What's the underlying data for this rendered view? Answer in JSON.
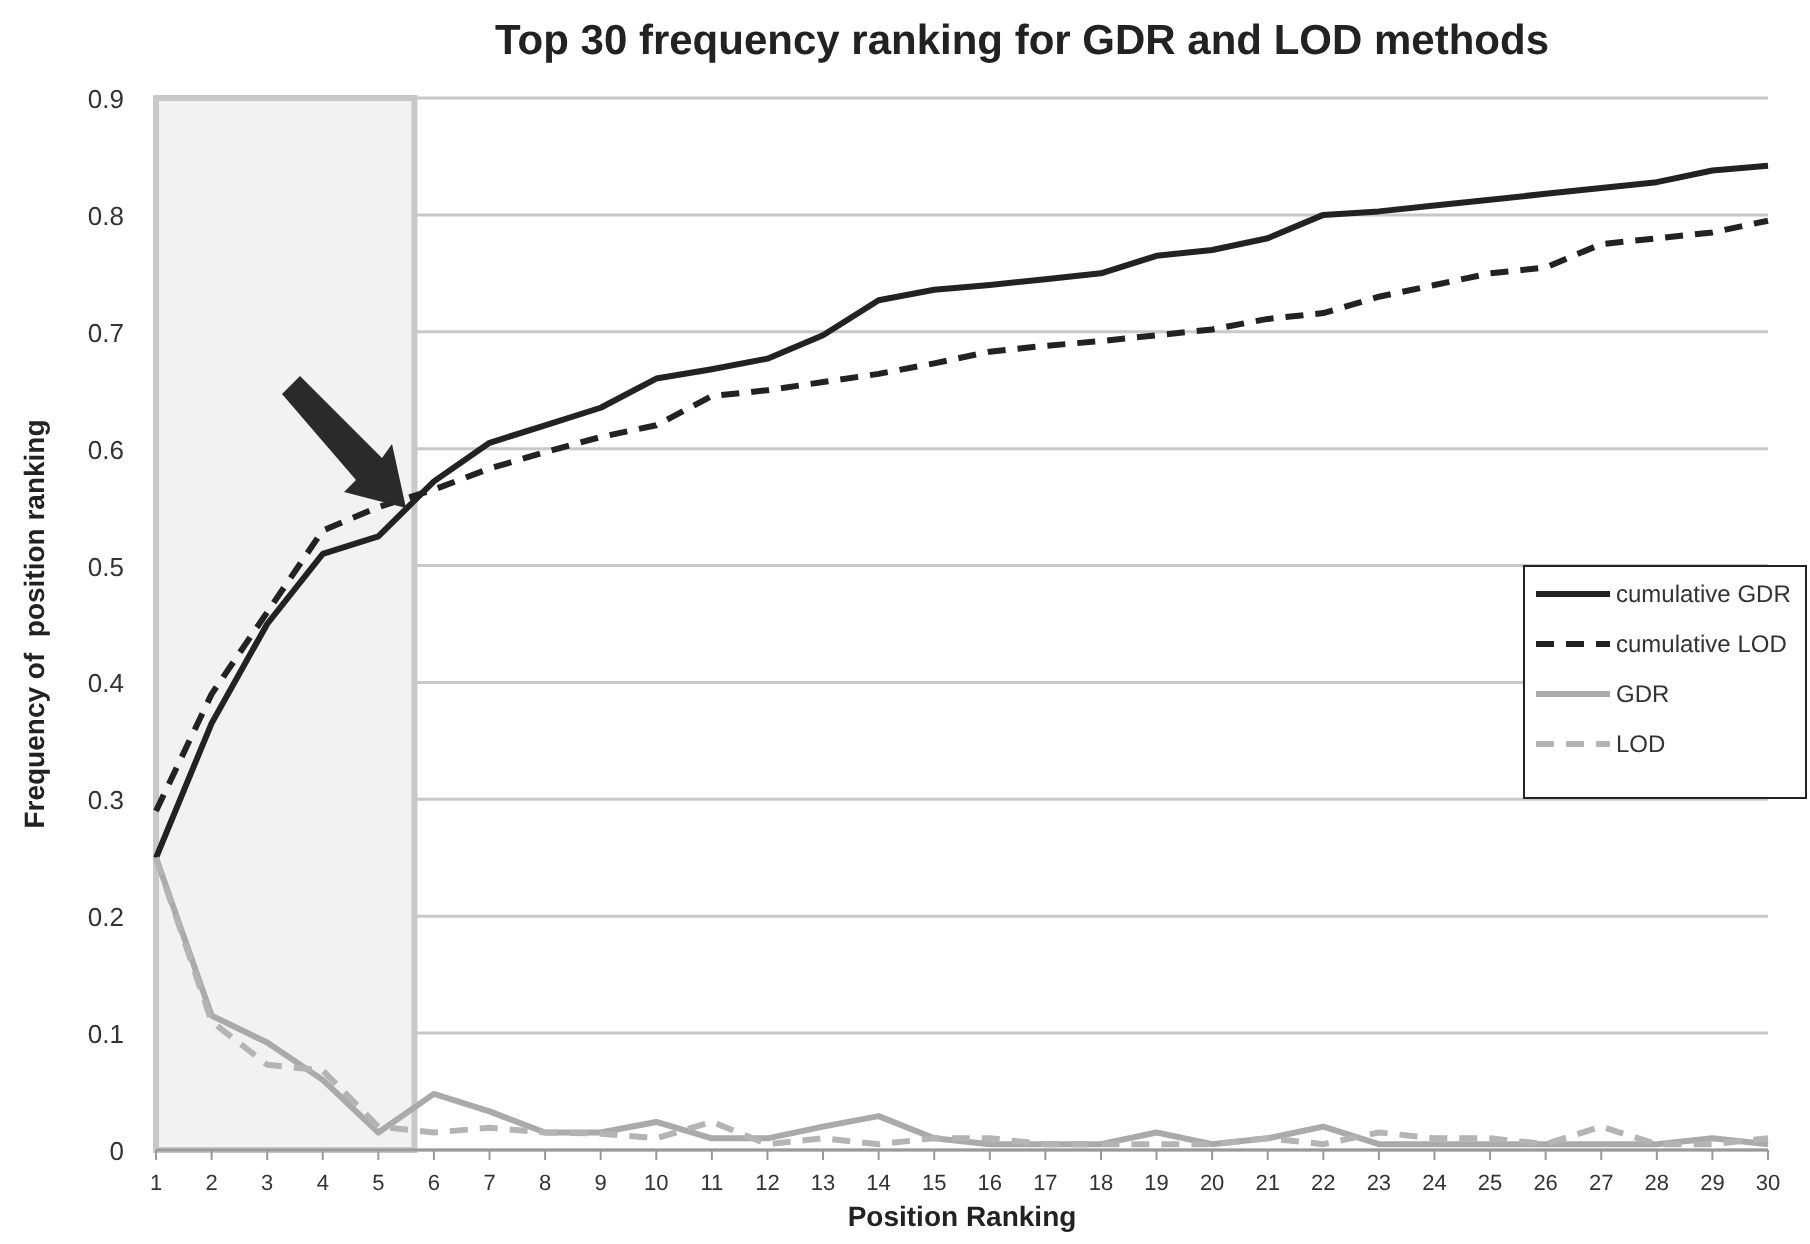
{
  "chart_data": {
    "type": "line",
    "title": "Top 30 frequency ranking for GDR and LOD methods",
    "xlabel": "Position Ranking",
    "ylabel": "Frequency of  position ranking",
    "x": [
      1,
      2,
      3,
      4,
      5,
      6,
      7,
      8,
      9,
      10,
      11,
      12,
      13,
      14,
      15,
      16,
      17,
      18,
      19,
      20,
      21,
      22,
      23,
      24,
      25,
      26,
      27,
      28,
      29,
      30
    ],
    "xlim": [
      1,
      30
    ],
    "xticks": [
      1,
      2,
      3,
      4,
      5,
      6,
      7,
      8,
      9,
      10,
      11,
      12,
      13,
      14,
      15,
      16,
      17,
      18,
      19,
      20,
      21,
      22,
      23,
      24,
      25,
      26,
      27,
      28,
      29,
      30
    ],
    "ylim": [
      0,
      0.9
    ],
    "yticks": [
      0,
      0.1,
      0.2,
      0.3,
      0.4,
      0.5,
      0.6,
      0.7,
      0.8,
      0.9
    ],
    "grid": "y",
    "legend": "right",
    "marker": "none",
    "bands": [
      {
        "axis": "x",
        "from": 1,
        "to": 5.65,
        "color": "#f2f2f2"
      }
    ],
    "series": [
      {
        "name": "cumulative GDR",
        "color": "#222222",
        "line_style": "solid",
        "values": [
          0.25,
          0.365,
          0.45,
          0.51,
          0.525,
          0.572,
          0.605,
          0.62,
          0.635,
          0.66,
          0.668,
          0.677,
          0.697,
          0.727,
          0.736,
          0.74,
          0.745,
          0.75,
          0.765,
          0.77,
          0.78,
          0.8,
          0.803,
          0.808,
          0.813,
          0.818,
          0.823,
          0.828,
          0.838,
          0.842
        ]
      },
      {
        "name": "cumulative LOD",
        "color": "#222222",
        "line_style": "dashed",
        "values": [
          0.29,
          0.39,
          0.46,
          0.53,
          0.55,
          0.565,
          0.583,
          0.597,
          0.61,
          0.62,
          0.645,
          0.65,
          0.657,
          0.664,
          0.673,
          0.683,
          0.688,
          0.692,
          0.697,
          0.702,
          0.711,
          0.716,
          0.73,
          0.74,
          0.75,
          0.755,
          0.775,
          0.78,
          0.785,
          0.795
        ]
      },
      {
        "name": "GDR",
        "color": "#aaaaaa",
        "line_style": "solid",
        "values": [
          0.25,
          0.115,
          0.092,
          0.06,
          0.015,
          0.048,
          0.033,
          0.015,
          0.015,
          0.024,
          0.01,
          0.01,
          0.02,
          0.029,
          0.01,
          0.005,
          0.005,
          0.005,
          0.015,
          0.005,
          0.01,
          0.02,
          0.005,
          0.005,
          0.005,
          0.005,
          0.005,
          0.005,
          0.01,
          0.005
        ]
      },
      {
        "name": "LOD",
        "color": "#b4b4b4",
        "line_style": "dashed",
        "values": [
          0.25,
          0.11,
          0.073,
          0.068,
          0.02,
          0.015,
          0.019,
          0.015,
          0.014,
          0.01,
          0.024,
          0.005,
          0.01,
          0.005,
          0.01,
          0.01,
          0.005,
          0.005,
          0.005,
          0.005,
          0.01,
          0.005,
          0.015,
          0.01,
          0.01,
          0.005,
          0.02,
          0.005,
          0.005,
          0.01
        ]
      }
    ]
  }
}
